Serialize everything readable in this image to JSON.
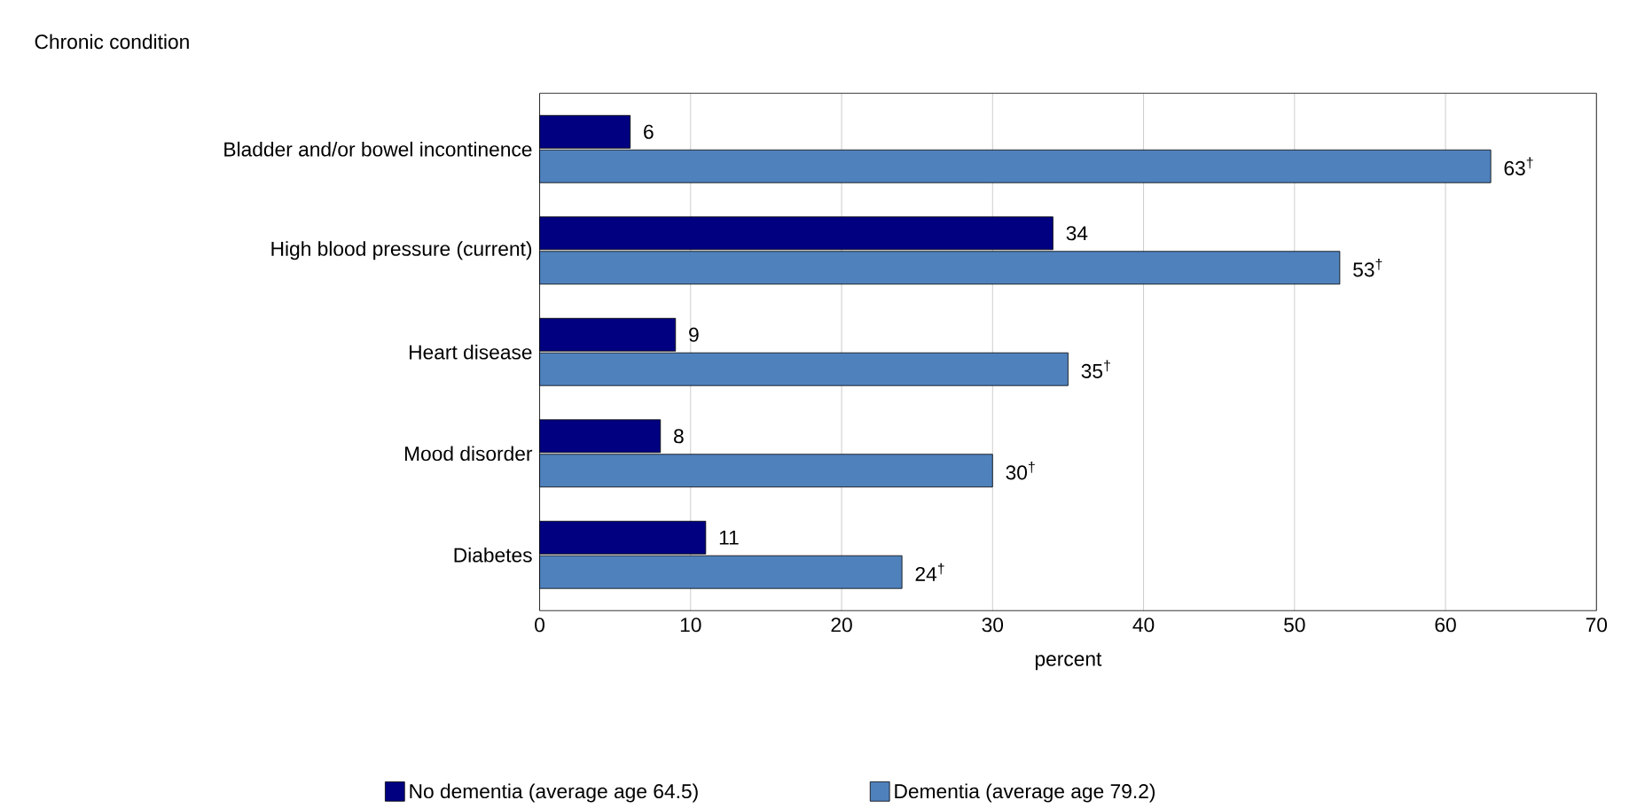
{
  "chart_data": {
    "type": "bar",
    "orientation": "horizontal",
    "ylabel": "Chronic condition",
    "xlabel": "percent",
    "categories": [
      "Bladder and/or bowel incontinence",
      "High blood pressure (current)",
      "Heart disease",
      "Mood disorder",
      "Diabetes"
    ],
    "series": [
      {
        "name": "No dementia (average age 64.5)",
        "color": "#000080",
        "values": [
          6,
          34,
          9,
          8,
          11
        ],
        "value_labels": [
          "6",
          "34",
          "9",
          "8",
          "11"
        ]
      },
      {
        "name": "Dementia (average age 79.2)",
        "color": "#4f81bd",
        "values": [
          63,
          53,
          35,
          30,
          24
        ],
        "value_labels": [
          "63$^{†}$",
          "53$^{†}$",
          "35$^{†}$",
          "30$^{†}$",
          "24$^{†}$"
        ]
      }
    ],
    "xlim": [
      0,
      70
    ],
    "xticks": [
      0,
      10,
      20,
      30,
      40,
      50,
      60,
      70
    ],
    "grid": "x",
    "legend": "bottom"
  }
}
